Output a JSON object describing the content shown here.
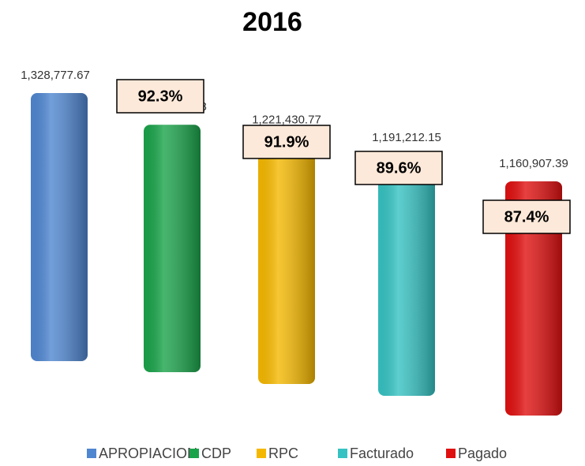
{
  "chart_data": {
    "type": "bar",
    "title": "2016",
    "categories": [
      "APROPIACION",
      "CDP",
      "RPC",
      "Facturado",
      "Pagado"
    ],
    "values": [
      1328777.67,
      1226307.68,
      1221430.77,
      1191212.15,
      1160907.39
    ],
    "value_labels": [
      "1,328,777.67",
      "1,226,307.68",
      "1,221,430.77",
      "1,191,212.15",
      "1,160,907.39"
    ],
    "colors": [
      "#4f86d0",
      "#1aa34a",
      "#f5b800",
      "#36c2c2",
      "#e01010"
    ],
    "annotations": [
      "92.3%",
      "91.9%",
      "89.6%",
      "87.4%"
    ],
    "legend": "bottom"
  }
}
